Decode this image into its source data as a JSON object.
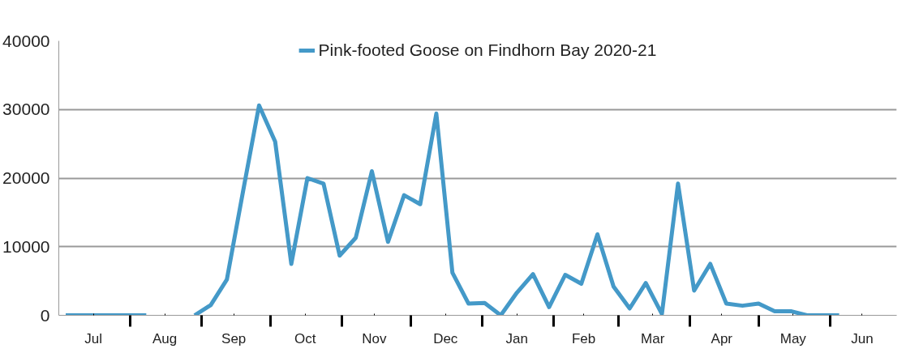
{
  "chart_data": {
    "type": "line",
    "x": [
      "2020-07-04",
      "2020-07-11",
      "2020-07-18",
      "2020-07-25",
      "2020-08-01",
      "2020-08-08",
      "2020-08-15",
      "2020-08-22",
      "2020-08-29",
      "2020-09-05",
      "2020-09-12",
      "2020-09-19",
      "2020-09-26",
      "2020-10-03",
      "2020-10-10",
      "2020-10-17",
      "2020-10-24",
      "2020-10-31",
      "2020-11-07",
      "2020-11-14",
      "2020-11-21",
      "2020-11-28",
      "2020-12-05",
      "2020-12-12",
      "2020-12-19",
      "2020-12-26",
      "2021-01-02",
      "2021-01-09",
      "2021-01-16",
      "2021-01-23",
      "2021-01-30",
      "2021-02-06",
      "2021-02-13",
      "2021-02-20",
      "2021-02-27",
      "2021-03-06",
      "2021-03-13",
      "2021-03-20",
      "2021-03-27",
      "2021-04-03",
      "2021-04-10",
      "2021-04-17",
      "2021-04-24",
      "2021-05-01",
      "2021-05-08",
      "2021-05-15",
      "2021-05-22",
      "2021-05-29",
      "2021-06-05"
    ],
    "series": [
      {
        "name": "Pink-footed Goose on Findhorn Bay 2020-21",
        "color": "#4499c8",
        "values": [
          0,
          0,
          0,
          0,
          0,
          0,
          null,
          null,
          0,
          1500,
          5200,
          18000,
          30600,
          25300,
          7500,
          20000,
          19200,
          8700,
          11300,
          21000,
          10700,
          17500,
          16200,
          29400,
          6200,
          1700,
          1800,
          0,
          3300,
          6000,
          1200,
          5900,
          4600,
          11800,
          4200,
          1000,
          4700,
          200,
          19200,
          3600,
          7500,
          1700,
          1400,
          1700,
          600,
          600,
          0,
          0,
          0
        ]
      }
    ],
    "xlim": [
      "2020-07-01",
      "2021-06-30"
    ],
    "xticks": [
      {
        "value": "2020-07-16",
        "label": "Jul"
      },
      {
        "value": "2020-08-01",
        "label": null
      },
      {
        "value": "2020-08-16",
        "label": "Aug"
      },
      {
        "value": "2020-09-01",
        "label": null
      },
      {
        "value": "2020-09-15",
        "label": "Sep"
      },
      {
        "value": "2020-10-01",
        "label": null
      },
      {
        "value": "2020-10-16",
        "label": "Oct"
      },
      {
        "value": "2020-11-01",
        "label": null
      },
      {
        "value": "2020-11-15",
        "label": "Nov"
      },
      {
        "value": "2020-12-01",
        "label": null
      },
      {
        "value": "2020-12-16",
        "label": "Dec"
      },
      {
        "value": "2021-01-01",
        "label": null
      },
      {
        "value": "2021-01-16",
        "label": "Jan"
      },
      {
        "value": "2021-02-01",
        "label": null
      },
      {
        "value": "2021-02-14",
        "label": "Feb"
      },
      {
        "value": "2021-03-01",
        "label": null
      },
      {
        "value": "2021-03-16",
        "label": "Mar"
      },
      {
        "value": "2021-04-01",
        "label": null
      },
      {
        "value": "2021-04-15",
        "label": "Apr"
      },
      {
        "value": "2021-05-01",
        "label": null
      },
      {
        "value": "2021-05-16",
        "label": "May"
      },
      {
        "value": "2021-06-01",
        "label": null
      },
      {
        "value": "2021-06-15",
        "label": "Jun"
      }
    ],
    "ylim": [
      0,
      40000
    ],
    "yticks": [
      0,
      10000,
      20000,
      30000,
      40000
    ],
    "grid": "y",
    "legend": "top",
    "marker": "none",
    "line_style": "solid"
  }
}
